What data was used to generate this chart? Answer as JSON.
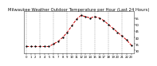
{
  "title": "Milwaukee Weather Outdoor Temperature per Hour (Last 24 Hours)",
  "hours": [
    0,
    1,
    2,
    3,
    4,
    5,
    6,
    7,
    8,
    9,
    10,
    11,
    12,
    13,
    14,
    15,
    16,
    17,
    18,
    19,
    20,
    21,
    22,
    23
  ],
  "temps": [
    33,
    33,
    33,
    33,
    33,
    33,
    35,
    37,
    40,
    44,
    49,
    54,
    57,
    56,
    55,
    56,
    55,
    53,
    50,
    47,
    44,
    41,
    38,
    34
  ],
  "line_color": "#cc0000",
  "marker_color": "#111111",
  "bg_color": "#ffffff",
  "grid_color": "#999999",
  "ylim_min": 28,
  "ylim_max": 60,
  "yticks": [
    30,
    35,
    40,
    45,
    50,
    55
  ],
  "grid_hours": [
    0,
    3,
    6,
    9,
    12,
    15,
    18,
    21
  ],
  "title_fontsize": 3.8,
  "tick_fontsize": 2.8,
  "linewidth": 0.7,
  "markersize": 1.3
}
